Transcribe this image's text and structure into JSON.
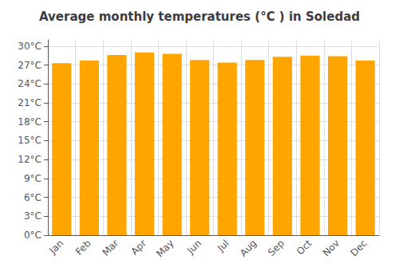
{
  "chart_data": {
    "type": "bar",
    "title": "Average monthly temperatures (°C ) in Soledad",
    "categories": [
      "Jan",
      "Feb",
      "Mar",
      "Apr",
      "May",
      "Jun",
      "Jul",
      "Aug",
      "Sep",
      "Oct",
      "Nov",
      "Dec"
    ],
    "values": [
      27.3,
      27.7,
      28.6,
      29.0,
      28.8,
      27.8,
      27.4,
      27.8,
      28.3,
      28.5,
      28.4,
      27.7
    ],
    "color": "#FFA500",
    "ylim": [
      0,
      31
    ],
    "yticks": [
      {
        "value": 0,
        "label": "0°C"
      },
      {
        "value": 3,
        "label": "3°C"
      },
      {
        "value": 6,
        "label": "6°C"
      },
      {
        "value": 9,
        "label": "9°C"
      },
      {
        "value": 12,
        "label": "12°C"
      },
      {
        "value": 15,
        "label": "15°C"
      },
      {
        "value": 18,
        "label": "18°C"
      },
      {
        "value": 21,
        "label": "21°C"
      },
      {
        "value": 24,
        "label": "24°C"
      },
      {
        "value": 27,
        "label": "27°C"
      },
      {
        "value": 30,
        "label": "30°C"
      }
    ],
    "grid": true
  }
}
